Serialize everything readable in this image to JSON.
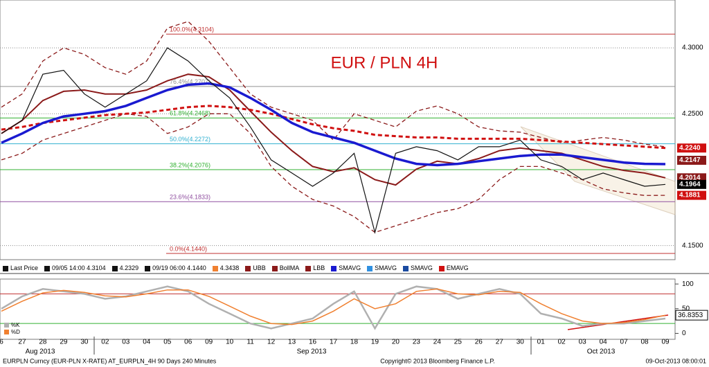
{
  "chart_data": [
    {
      "type": "line",
      "title": "EUR / PLN 4H",
      "categories": [
        "6",
        "27",
        "28",
        "29",
        "30",
        "02",
        "03",
        "04",
        "05",
        "06",
        "09",
        "10",
        "11",
        "12",
        "13",
        "16",
        "17",
        "18",
        "19",
        "20",
        "23",
        "24",
        "25",
        "26",
        "27",
        "30",
        "01",
        "02",
        "03",
        "04",
        "07",
        "08",
        "09"
      ],
      "months": [
        "Aug 2013",
        "Sep 2013",
        "Oct 2013"
      ],
      "series": [
        {
          "name": "UBB",
          "color": "#8b1a1a",
          "dash": true,
          "width": 1.3,
          "values": [
            4.255,
            4.265,
            4.29,
            4.3,
            4.295,
            4.285,
            4.28,
            4.29,
            4.315,
            4.32,
            4.305,
            4.285,
            4.265,
            4.255,
            4.25,
            4.245,
            4.23,
            4.25,
            4.245,
            4.24,
            4.252,
            4.256,
            4.25,
            4.24,
            4.237,
            4.236,
            4.232,
            4.228,
            4.23,
            4.232,
            4.23,
            4.227,
            4.225
          ]
        },
        {
          "name": "LBB",
          "color": "#8b1a1a",
          "dash": true,
          "width": 1.3,
          "values": [
            4.215,
            4.22,
            4.23,
            4.235,
            4.24,
            4.245,
            4.25,
            4.248,
            4.235,
            4.24,
            4.25,
            4.25,
            4.235,
            4.21,
            4.195,
            4.185,
            4.18,
            4.172,
            4.16,
            4.165,
            4.17,
            4.175,
            4.178,
            4.185,
            4.2,
            4.21,
            4.21,
            4.205,
            4.2,
            4.193,
            4.19,
            4.188,
            4.1881
          ]
        },
        {
          "name": "BollMA",
          "color": "#8b1a1a",
          "dash": false,
          "width": 2,
          "values": [
            4.235,
            4.245,
            4.26,
            4.267,
            4.268,
            4.265,
            4.265,
            4.268,
            4.275,
            4.28,
            4.278,
            4.268,
            4.252,
            4.236,
            4.222,
            4.21,
            4.206,
            4.209,
            4.2,
            4.196,
            4.208,
            4.214,
            4.212,
            4.216,
            4.222,
            4.224,
            4.222,
            4.22,
            4.215,
            4.21,
            4.207,
            4.205,
            4.2014
          ]
        },
        {
          "name": "EMAVG",
          "color": "#d01010",
          "dash": true,
          "width": 3,
          "values": [
            4.238,
            4.24,
            4.243,
            4.245,
            4.247,
            4.249,
            4.25,
            4.251,
            4.253,
            4.255,
            4.256,
            4.255,
            4.253,
            4.25,
            4.246,
            4.242,
            4.239,
            4.237,
            4.234,
            4.233,
            4.232,
            4.232,
            4.231,
            4.231,
            4.231,
            4.231,
            4.23,
            4.229,
            4.228,
            4.227,
            4.226,
            4.225,
            4.224
          ]
        },
        {
          "name": "SMAVG",
          "color": "#1a1ad0",
          "dash": false,
          "width": 3.5,
          "values": [
            4.228,
            4.235,
            4.243,
            4.248,
            4.25,
            4.252,
            4.256,
            4.262,
            4.268,
            4.272,
            4.273,
            4.27,
            4.262,
            4.253,
            4.243,
            4.236,
            4.232,
            4.228,
            4.222,
            4.216,
            4.212,
            4.211,
            4.212,
            4.214,
            4.216,
            4.218,
            4.219,
            4.219,
            4.217,
            4.215,
            4.213,
            4.212,
            4.2118
          ]
        },
        {
          "name": "Last Price",
          "color": "#111111",
          "dash": false,
          "width": 1.2,
          "values": [
            4.235,
            4.245,
            4.28,
            4.283,
            4.265,
            4.255,
            4.265,
            4.275,
            4.3,
            4.29,
            4.275,
            4.262,
            4.24,
            4.215,
            4.205,
            4.195,
            4.205,
            4.22,
            4.16,
            4.22,
            4.225,
            4.222,
            4.215,
            4.225,
            4.225,
            4.23,
            4.215,
            4.21,
            4.2,
            4.205,
            4.2,
            4.195,
            4.1964
          ]
        }
      ],
      "ylim": [
        4.1393,
        4.3363
      ],
      "yticks": [
        {
          "value": 4.15,
          "label": "4.1500"
        },
        {
          "value": 4.25,
          "label": "4.2500"
        },
        {
          "value": 4.3,
          "label": "4.3000"
        }
      ],
      "annotations": [
        {
          "label": "100.0%(4.3104)",
          "value": 4.3104,
          "color": "#c03030"
        },
        {
          "label": "76.4%(4.2707)",
          "value": 4.2707,
          "color": "#909090"
        },
        {
          "label": "61.8%(4.2468)",
          "value": 4.2468,
          "color": "#30b030"
        },
        {
          "label": "50.0%(4.2272)",
          "value": 4.2272,
          "color": "#30b0d0"
        },
        {
          "label": "38.2%(4.2076)",
          "value": 4.2076,
          "color": "#30b030"
        },
        {
          "label": "23.6%(4.1833)",
          "value": 4.1833,
          "color": "#9050a0"
        },
        {
          "label": "0.0%(4.1440)",
          "value": 4.144,
          "color": "#c03030"
        }
      ],
      "price_labels": [
        {
          "value": 4.224,
          "label": "4.2240",
          "color": "#d01010"
        },
        {
          "value": 4.2147,
          "label": "4.2147",
          "color": "#8b1a1a"
        },
        {
          "value": 4.2014,
          "label": "4.2014",
          "color": "#8b1a1a"
        },
        {
          "value": 4.1964,
          "label": "4.1964",
          "color": "#000000"
        },
        {
          "value": 4.1881,
          "label": "4.1881",
          "color": "#d01010"
        }
      ]
    },
    {
      "type": "line",
      "series": [
        {
          "name": "%K",
          "color": "#b0b0b0",
          "values": [
            50,
            75,
            90,
            85,
            80,
            70,
            75,
            85,
            95,
            85,
            60,
            40,
            20,
            10,
            20,
            30,
            60,
            85,
            10,
            80,
            95,
            90,
            70,
            80,
            90,
            80,
            40,
            30,
            15,
            20,
            20,
            25,
            30
          ]
        },
        {
          "name": "%D",
          "color": "#f08030",
          "values": [
            45,
            65,
            82,
            87,
            83,
            76,
            74,
            80,
            88,
            88,
            75,
            55,
            35,
            20,
            18,
            25,
            45,
            70,
            50,
            60,
            85,
            90,
            80,
            78,
            85,
            83,
            60,
            40,
            25,
            20,
            22,
            28,
            36.8353
          ]
        }
      ],
      "ylim": [
        -12,
        110
      ],
      "yticks": [
        0,
        50,
        100
      ],
      "ref_lines": [
        {
          "value": 80,
          "color": "#c03030"
        },
        {
          "value": 20,
          "color": "#30b030"
        }
      ],
      "last_label": {
        "value": 36.8353,
        "label": "36.8353"
      }
    }
  ],
  "legend_bar": [
    {
      "text": "Last Price",
      "color": "#111111"
    },
    {
      "text": "09/05 14:00 4.3104",
      "color": "#111111"
    },
    {
      "text": "4.2329",
      "color": "#111111"
    },
    {
      "text": "09/19 06:00 4.1440",
      "color": "#111111"
    },
    {
      "text": "4.3438",
      "color": "#f08030"
    },
    {
      "text": "UBB",
      "color": "#8b1a1a"
    },
    {
      "text": "BollMA",
      "color": "#8b1a1a"
    },
    {
      "text": "LBB",
      "color": "#8b1a1a"
    },
    {
      "text": "SMAVG",
      "color": "#1a1ad0"
    },
    {
      "text": "SMAVG",
      "color": "#3090e0"
    },
    {
      "text": "SMAVG",
      "color": "#1a4aa0"
    },
    {
      "text": "EMAVG",
      "color": "#d01010"
    }
  ],
  "footer": {
    "left": "EURPLN Curncy (EUR-PLN X-RATE) AT_EURPLN_4H 90 Days 240 Minutes",
    "center": "Copyright© 2013 Bloomberg Finance L.P.",
    "right": "09-Oct-2013 08:00:01"
  }
}
